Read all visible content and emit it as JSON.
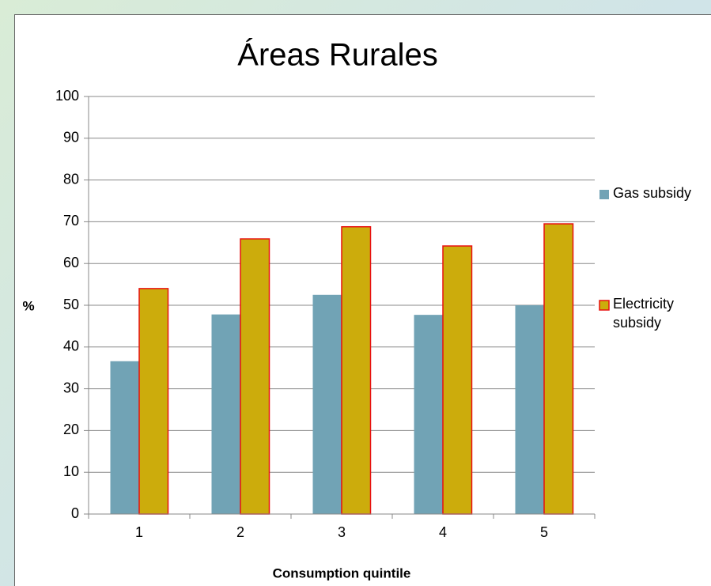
{
  "chart_data": {
    "type": "bar",
    "title": "Áreas Rurales",
    "x_label": "Consumption quintile",
    "y_label": "%",
    "categories": [
      "1",
      "2",
      "3",
      "4",
      "5"
    ],
    "series": [
      {
        "name": "Gas subsidy",
        "color": "#71a3b5",
        "values": [
          36.6,
          47.8,
          52.5,
          47.7,
          50.0
        ]
      },
      {
        "name": "Electricity subsidy",
        "color": "#ccac0c",
        "edgecolor": "#e81010",
        "values": [
          54.0,
          65.9,
          68.8,
          64.2,
          69.5
        ]
      }
    ],
    "ylim": [
      0,
      100
    ],
    "yticks": [
      0,
      10,
      20,
      30,
      40,
      50,
      60,
      70,
      80,
      90,
      100
    ],
    "grid": true,
    "legend": "right"
  }
}
